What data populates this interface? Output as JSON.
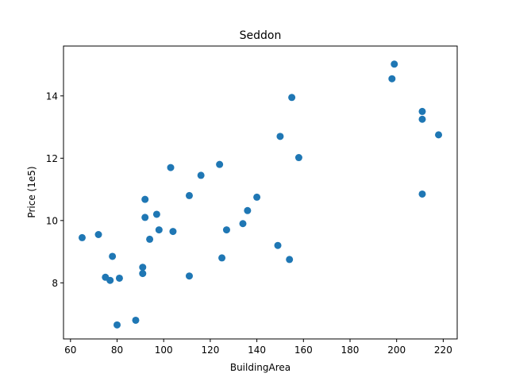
{
  "chart_data": {
    "type": "scatter",
    "title": "Seddon",
    "xlabel": "BuildingArea",
    "ylabel": "Price (1e5)",
    "xlim": [
      57,
      226
    ],
    "ylim": [
      6.2,
      15.6
    ],
    "xticks": [
      60,
      80,
      100,
      120,
      140,
      160,
      180,
      200,
      220
    ],
    "yticks": [
      8,
      10,
      12,
      14
    ],
    "grid": false,
    "marker_color": "#1f77b4",
    "points": [
      {
        "x": 65,
        "y": 9.45
      },
      {
        "x": 72,
        "y": 9.55
      },
      {
        "x": 75,
        "y": 8.18
      },
      {
        "x": 77,
        "y": 8.08
      },
      {
        "x": 78,
        "y": 8.85
      },
      {
        "x": 80,
        "y": 6.65
      },
      {
        "x": 81,
        "y": 8.15
      },
      {
        "x": 88,
        "y": 6.8
      },
      {
        "x": 91,
        "y": 8.5
      },
      {
        "x": 91,
        "y": 8.3
      },
      {
        "x": 92,
        "y": 10.68
      },
      {
        "x": 92,
        "y": 10.1
      },
      {
        "x": 94,
        "y": 9.4
      },
      {
        "x": 97,
        "y": 10.2
      },
      {
        "x": 98,
        "y": 9.7
      },
      {
        "x": 103,
        "y": 11.7
      },
      {
        "x": 104,
        "y": 9.65
      },
      {
        "x": 111,
        "y": 10.8
      },
      {
        "x": 111,
        "y": 8.22
      },
      {
        "x": 116,
        "y": 11.45
      },
      {
        "x": 124,
        "y": 11.8
      },
      {
        "x": 125,
        "y": 8.8
      },
      {
        "x": 127,
        "y": 9.7
      },
      {
        "x": 134,
        "y": 9.9
      },
      {
        "x": 136,
        "y": 10.32
      },
      {
        "x": 140,
        "y": 10.75
      },
      {
        "x": 149,
        "y": 9.2
      },
      {
        "x": 150,
        "y": 12.7
      },
      {
        "x": 154,
        "y": 8.75
      },
      {
        "x": 155,
        "y": 13.95
      },
      {
        "x": 158,
        "y": 12.02
      },
      {
        "x": 198,
        "y": 14.55
      },
      {
        "x": 199,
        "y": 15.02
      },
      {
        "x": 211,
        "y": 13.5
      },
      {
        "x": 211,
        "y": 13.25
      },
      {
        "x": 211,
        "y": 10.85
      },
      {
        "x": 218,
        "y": 12.75
      }
    ]
  }
}
